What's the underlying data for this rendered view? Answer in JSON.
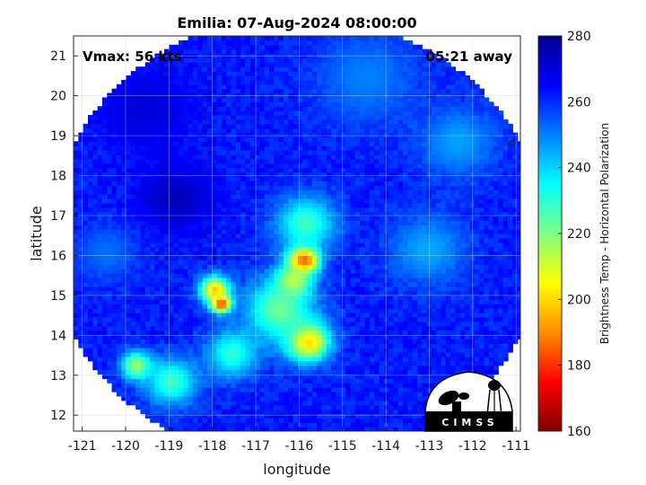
{
  "chart_data": {
    "type": "heatmap",
    "title": "Emilia: 07-Aug-2024 08:00:00",
    "xlabel": "longitude",
    "ylabel": "latitude",
    "xlim": [
      -121.2,
      -110.9
    ],
    "ylim": [
      11.6,
      21.5
    ],
    "xticks": [
      -121,
      -120,
      -119,
      -118,
      -117,
      -116,
      -115,
      -114,
      -113,
      -112,
      -111
    ],
    "yticks": [
      12,
      13,
      14,
      15,
      16,
      17,
      18,
      19,
      20,
      21
    ],
    "grid": true,
    "colorbar": {
      "label": "Brightness Temp - Horizontal Polarization",
      "min": 160,
      "max": 280,
      "ticks": [
        160,
        180,
        200,
        220,
        240,
        260,
        280
      ],
      "colormap": [
        "#7f0000",
        "#ff0000",
        "#ff8c00",
        "#ffff00",
        "#80ff80",
        "#00ffff",
        "#0080ff",
        "#0000ff",
        "#00008f"
      ]
    },
    "swath": {
      "center_lon": -116.1,
      "center_lat": 16.35,
      "lon_radius": 5.7,
      "lat_radius": 5.6,
      "background_temp": 262
    },
    "features": [
      {
        "lon": -115.95,
        "lat": 15.85,
        "temp": 168,
        "spread": 0.35
      },
      {
        "lon": -117.85,
        "lat": 14.75,
        "temp": 170,
        "spread": 0.22
      },
      {
        "lon": -115.85,
        "lat": 13.8,
        "temp": 196,
        "spread": 0.5
      },
      {
        "lon": -118.0,
        "lat": 15.1,
        "temp": 198,
        "spread": 0.35
      },
      {
        "lon": -116.2,
        "lat": 15.3,
        "temp": 206,
        "spread": 0.4
      },
      {
        "lon": -115.9,
        "lat": 16.75,
        "temp": 228,
        "spread": 0.7
      },
      {
        "lon": -116.5,
        "lat": 14.6,
        "temp": 222,
        "spread": 0.8
      },
      {
        "lon": -117.6,
        "lat": 13.5,
        "temp": 230,
        "spread": 0.6
      },
      {
        "lon": -119.8,
        "lat": 13.2,
        "temp": 215,
        "spread": 0.35
      },
      {
        "lon": -119.0,
        "lat": 12.8,
        "temp": 228,
        "spread": 0.6
      },
      {
        "lon": -113.1,
        "lat": 16.1,
        "temp": 245,
        "spread": 0.9
      },
      {
        "lon": -112.4,
        "lat": 18.8,
        "temp": 246,
        "spread": 0.9
      },
      {
        "lon": -114.5,
        "lat": 20.4,
        "temp": 250,
        "spread": 1.2
      },
      {
        "lon": -118.9,
        "lat": 17.4,
        "temp": 274,
        "spread": 0.8
      },
      {
        "lon": -119.6,
        "lat": 19.6,
        "temp": 270,
        "spread": 1.0
      },
      {
        "lon": -120.5,
        "lat": 16.0,
        "temp": 252,
        "spread": 0.7
      }
    ],
    "annotations": {
      "vmax": "Vmax: 56 kts",
      "time_away": "05:21 away"
    }
  },
  "logo": {
    "text": "CIMSS"
  }
}
